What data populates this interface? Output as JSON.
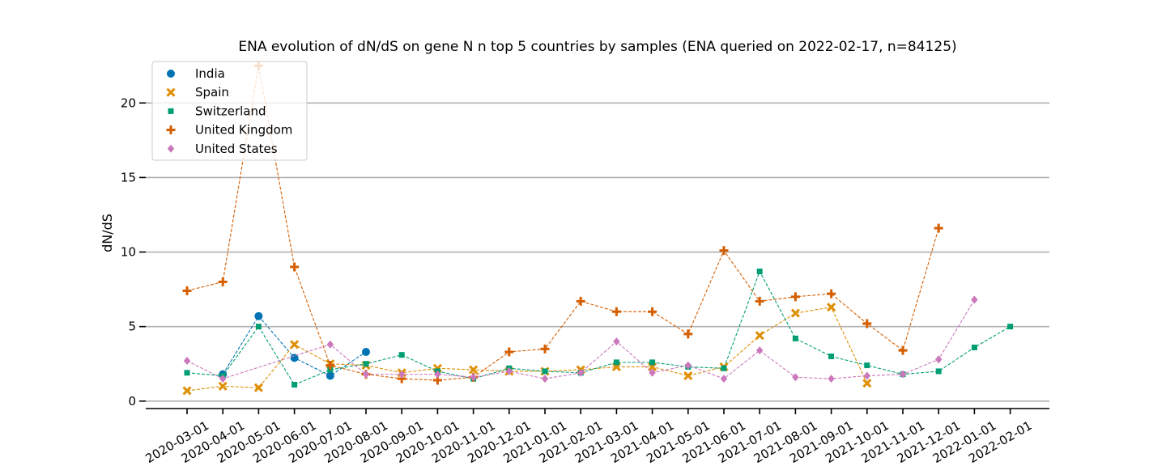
{
  "chart_data": {
    "type": "line",
    "title": "ENA evolution of dN/dS on gene N n top 5 countries by samples (ENA queried on 2022-02-17, n=84125)",
    "xlabel": "",
    "ylabel": "dN/dS",
    "ylim": [
      -0.5,
      23
    ],
    "yticks": [
      0,
      5,
      10,
      15,
      20
    ],
    "grid": "horizontal",
    "legend_position": "top-left",
    "categories": [
      "2020-03-01",
      "2020-04-01",
      "2020-05-01",
      "2020-06-01",
      "2020-07-01",
      "2020-08-01",
      "2020-09-01",
      "2020-10-01",
      "2020-11-01",
      "2020-12-01",
      "2021-01-01",
      "2021-02-01",
      "2021-03-01",
      "2021-04-01",
      "2021-05-01",
      "2021-06-01",
      "2021-07-01",
      "2021-08-01",
      "2021-09-01",
      "2021-10-01",
      "2021-11-01",
      "2021-12-01",
      "2022-01-01",
      "2022-02-01"
    ],
    "series": [
      {
        "name": "India",
        "color": "#0173b2",
        "marker": "circle",
        "values": [
          null,
          1.8,
          5.7,
          2.9,
          1.7,
          3.3,
          null,
          null,
          null,
          null,
          null,
          null,
          null,
          null,
          null,
          null,
          null,
          null,
          null,
          null,
          null,
          null,
          null,
          null
        ]
      },
      {
        "name": "Spain",
        "color": "#de8f05",
        "marker": "x",
        "values": [
          0.7,
          1.0,
          0.9,
          3.8,
          2.5,
          2.4,
          1.9,
          2.2,
          2.1,
          2.0,
          2.0,
          2.1,
          2.3,
          2.3,
          1.7,
          2.3,
          4.4,
          5.9,
          6.3,
          1.2,
          null,
          null,
          null,
          null
        ]
      },
      {
        "name": "Switzerland",
        "color": "#029e73",
        "marker": "square",
        "values": [
          1.9,
          1.7,
          5.0,
          1.1,
          2.1,
          2.5,
          3.1,
          2.0,
          1.5,
          2.2,
          2.0,
          1.9,
          2.6,
          2.6,
          2.3,
          2.2,
          8.7,
          4.2,
          3.0,
          2.4,
          1.8,
          2.0,
          3.6,
          5.0
        ]
      },
      {
        "name": "United Kingdom",
        "color": "#d55e00",
        "marker": "plus",
        "values": [
          7.4,
          8.0,
          22.5,
          9.0,
          2.4,
          1.8,
          1.5,
          1.4,
          1.6,
          3.3,
          3.5,
          6.7,
          6.0,
          6.0,
          4.5,
          10.1,
          6.7,
          7.0,
          7.2,
          5.2,
          3.4,
          11.6,
          null,
          null
        ]
      },
      {
        "name": "United States",
        "color": "#cc78bc",
        "marker": "diamond",
        "values": [
          2.7,
          1.5,
          null,
          null,
          3.8,
          1.8,
          1.8,
          1.8,
          1.6,
          2.0,
          1.5,
          1.9,
          4.0,
          1.9,
          2.4,
          1.5,
          3.4,
          1.6,
          1.5,
          1.7,
          1.8,
          2.8,
          6.8,
          null
        ]
      }
    ]
  }
}
